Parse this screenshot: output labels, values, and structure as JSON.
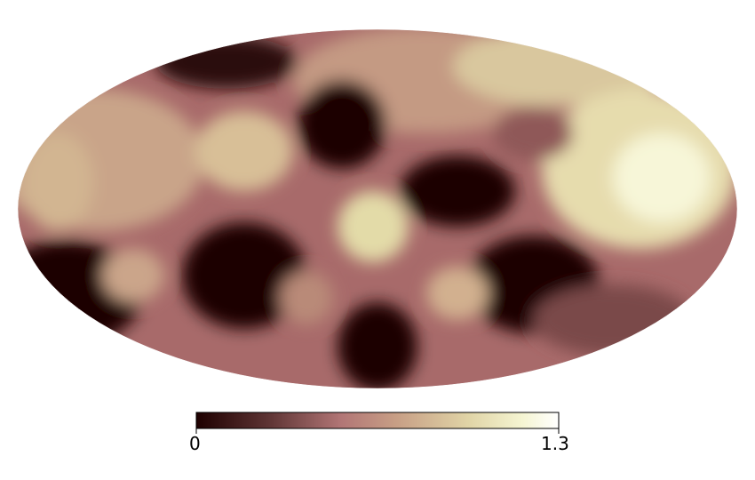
{
  "colormap": {
    "name": "pink",
    "stops": [
      "#1e0000",
      "#5e3434",
      "#b27676",
      "#c79e85",
      "#e0d4a6",
      "#f5f5d2",
      "#ffffff"
    ]
  },
  "colorbar": {
    "min_label": "0",
    "max_label": "1.3",
    "vmin": 0,
    "vmax": 1.3
  },
  "map": {
    "projection": "mollweide",
    "background": "#ffffff"
  }
}
